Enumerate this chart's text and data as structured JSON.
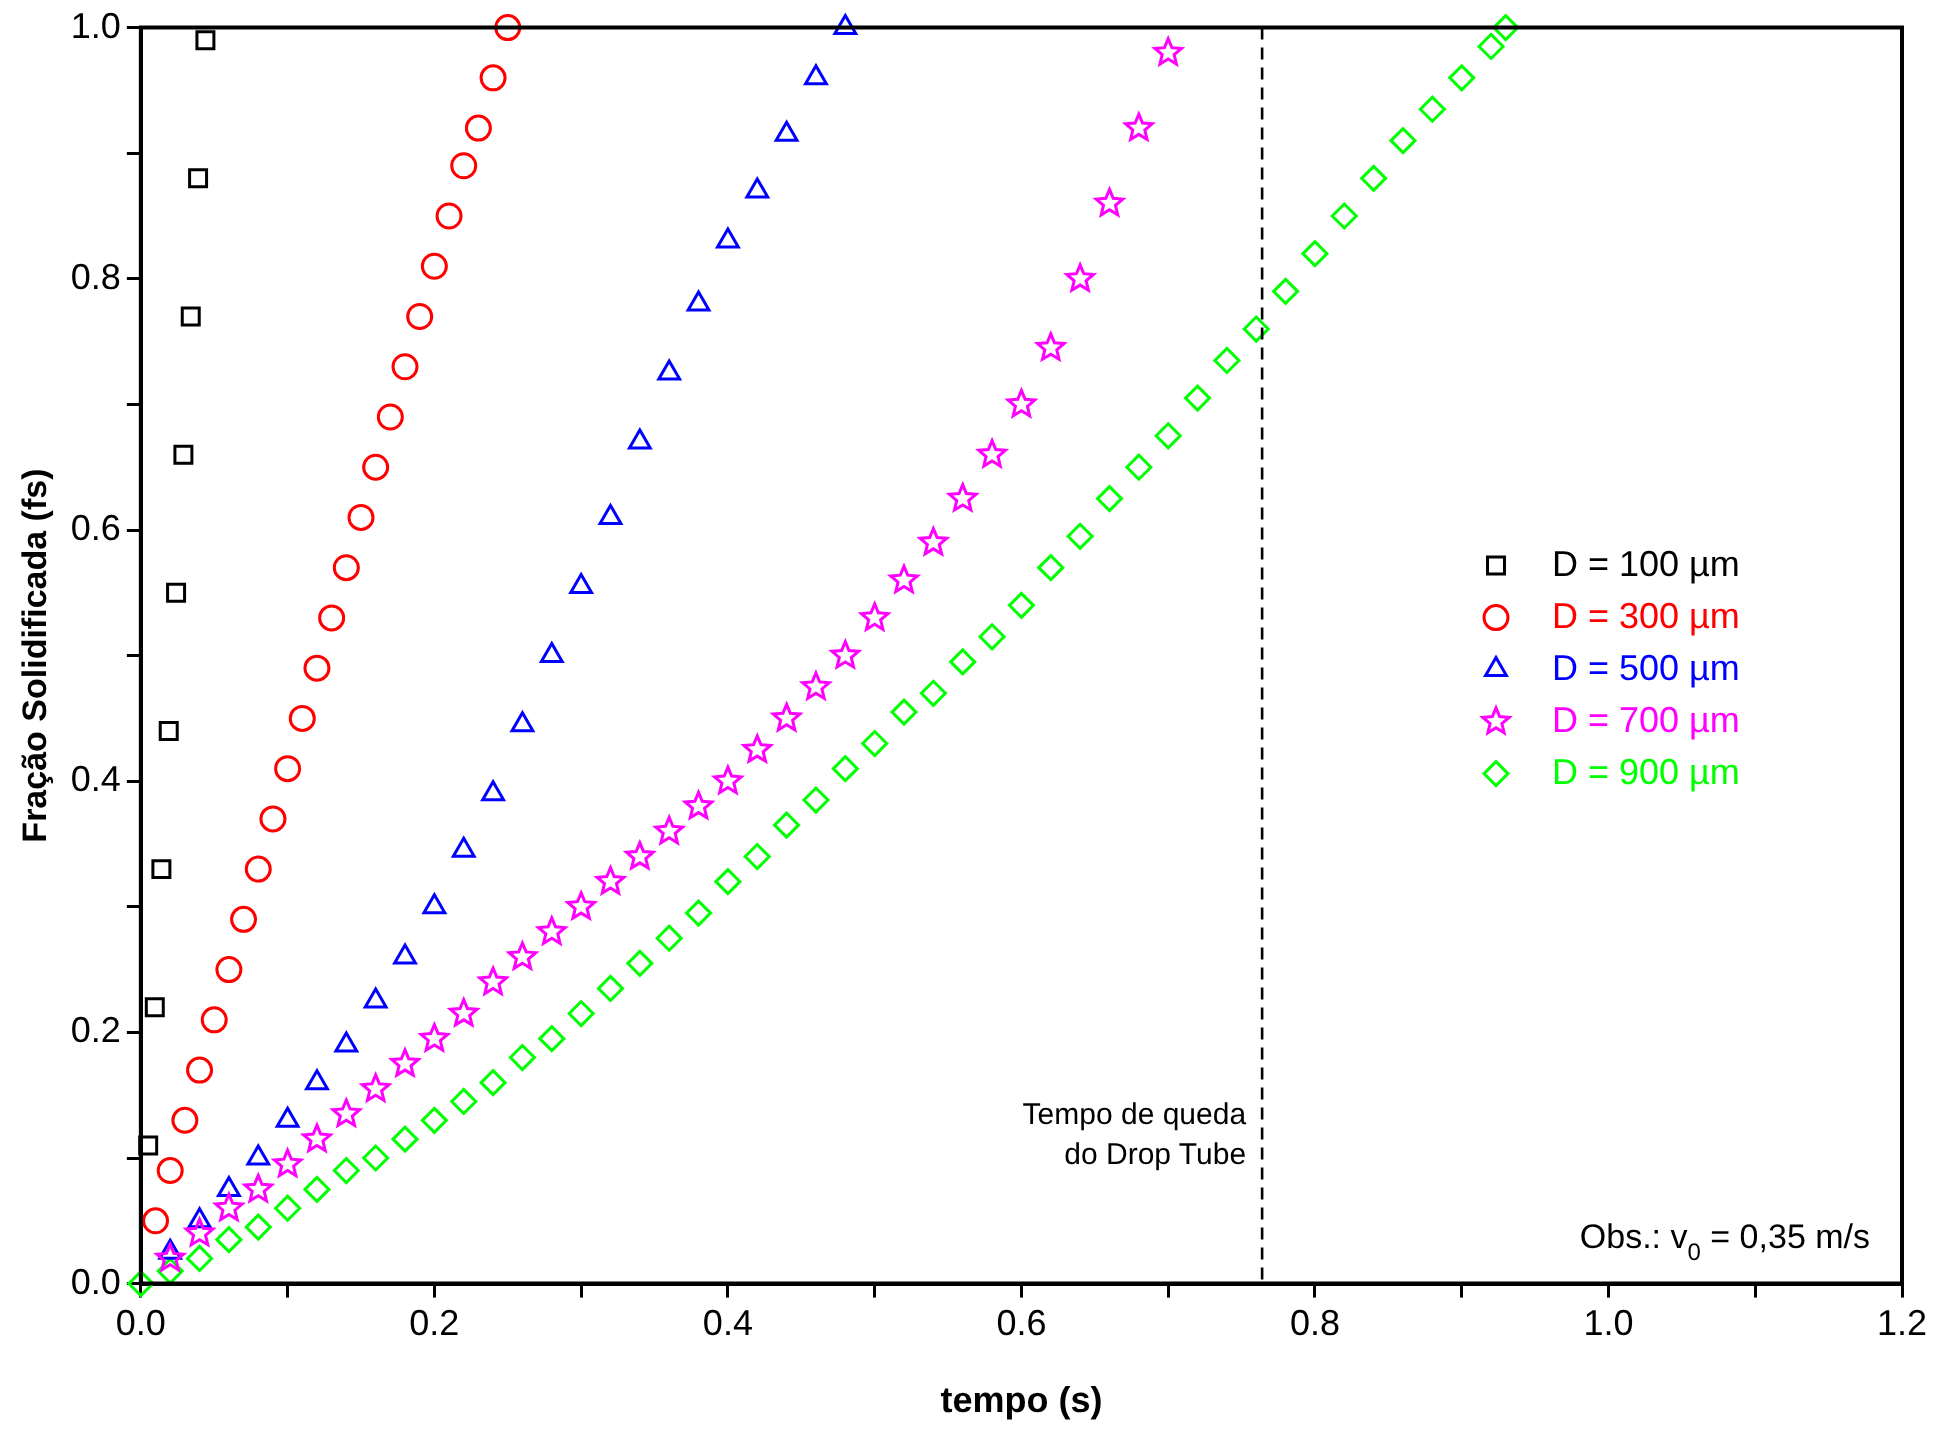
{
  "chart_data": {
    "type": "scatter",
    "xlabel": "tempo (s)",
    "ylabel": "Fração Solidificada (fs)",
    "xlim": [
      0,
      1.2
    ],
    "ylim": [
      0,
      1
    ],
    "xticks": [
      {
        "value": 0,
        "label": "0.0"
      },
      {
        "value": 0.1,
        "label": null
      },
      {
        "value": 0.2,
        "label": "0.2"
      },
      {
        "value": 0.3,
        "label": null
      },
      {
        "value": 0.4,
        "label": "0.4"
      },
      {
        "value": 0.5,
        "label": null
      },
      {
        "value": 0.6,
        "label": "0.6"
      },
      {
        "value": 0.7,
        "label": null
      },
      {
        "value": 0.8,
        "label": "0.8"
      },
      {
        "value": 0.9,
        "label": null
      },
      {
        "value": 1,
        "label": "1.0"
      },
      {
        "value": 1.1,
        "label": null
      },
      {
        "value": 1.2,
        "label": "1.2"
      }
    ],
    "yticks": [
      {
        "value": 0,
        "label": "0.0"
      },
      {
        "value": 0.1,
        "label": null
      },
      {
        "value": 0.2,
        "label": "0.2"
      },
      {
        "value": 0.3,
        "label": null
      },
      {
        "value": 0.4,
        "label": "0.4"
      },
      {
        "value": 0.5,
        "label": null
      },
      {
        "value": 0.6,
        "label": "0.6"
      },
      {
        "value": 0.7,
        "label": null
      },
      {
        "value": 0.8,
        "label": "0.8"
      },
      {
        "value": 0.9,
        "label": null
      },
      {
        "value": 1,
        "label": "1.0"
      }
    ],
    "grid": false,
    "legend": "right",
    "series": [
      {
        "name": "D = 100 µm",
        "color": "#000000",
        "marker": "square",
        "x": [
          0.005,
          0.0095,
          0.014,
          0.019,
          0.024,
          0.029,
          0.034,
          0.039,
          0.044
        ],
        "values": [
          0.11,
          0.22,
          0.33,
          0.44,
          0.55,
          0.66,
          0.77,
          0.88,
          0.99
        ]
      },
      {
        "name": "D = 300 µm",
        "color": "#ff0000",
        "marker": "circle",
        "x": [
          0.01,
          0.02,
          0.03,
          0.04,
          0.05,
          0.06,
          0.07,
          0.08,
          0.09,
          0.1,
          0.11,
          0.12,
          0.13,
          0.14,
          0.15,
          0.16,
          0.17,
          0.18,
          0.19,
          0.2,
          0.21,
          0.22,
          0.23,
          0.24,
          0.25
        ],
        "values": [
          0.05,
          0.09,
          0.13,
          0.17,
          0.21,
          0.25,
          0.29,
          0.33,
          0.37,
          0.41,
          0.45,
          0.49,
          0.53,
          0.57,
          0.61,
          0.65,
          0.69,
          0.73,
          0.77,
          0.81,
          0.85,
          0.89,
          0.92,
          0.96,
          1.0
        ]
      },
      {
        "name": "D = 500 µm",
        "color": "#0000ff",
        "marker": "triangle",
        "x": [
          0.02,
          0.04,
          0.06,
          0.08,
          0.1,
          0.12,
          0.14,
          0.16,
          0.18,
          0.2,
          0.22,
          0.24,
          0.26,
          0.28,
          0.3,
          0.32,
          0.34,
          0.36,
          0.38,
          0.4,
          0.42,
          0.44,
          0.46,
          0.48
        ],
        "values": [
          0.025,
          0.05,
          0.075,
          0.1,
          0.13,
          0.16,
          0.19,
          0.225,
          0.26,
          0.3,
          0.345,
          0.39,
          0.445,
          0.5,
          0.555,
          0.61,
          0.67,
          0.725,
          0.78,
          0.83,
          0.87,
          0.915,
          0.96,
          1.0
        ]
      },
      {
        "name": "D = 700 µm",
        "color": "#ff00ff",
        "marker": "star",
        "x": [
          0.02,
          0.04,
          0.06,
          0.08,
          0.1,
          0.12,
          0.14,
          0.16,
          0.18,
          0.2,
          0.22,
          0.24,
          0.26,
          0.28,
          0.3,
          0.32,
          0.34,
          0.36,
          0.38,
          0.4,
          0.42,
          0.44,
          0.46,
          0.48,
          0.5,
          0.52,
          0.54,
          0.56,
          0.58,
          0.6,
          0.62,
          0.64,
          0.66,
          0.68,
          0.7
        ],
        "values": [
          0.02,
          0.04,
          0.06,
          0.075,
          0.095,
          0.115,
          0.135,
          0.155,
          0.175,
          0.195,
          0.215,
          0.24,
          0.26,
          0.28,
          0.3,
          0.32,
          0.34,
          0.36,
          0.38,
          0.4,
          0.425,
          0.45,
          0.475,
          0.5,
          0.53,
          0.56,
          0.59,
          0.625,
          0.66,
          0.7,
          0.745,
          0.8,
          0.86,
          0.92,
          0.98
        ]
      },
      {
        "name": "D = 900 µm",
        "color": "#00ff00",
        "marker": "diamond",
        "x": [
          0,
          0.02,
          0.04,
          0.06,
          0.08,
          0.1,
          0.12,
          0.14,
          0.16,
          0.18,
          0.2,
          0.22,
          0.24,
          0.26,
          0.28,
          0.3,
          0.32,
          0.34,
          0.36,
          0.38,
          0.4,
          0.42,
          0.44,
          0.46,
          0.48,
          0.5,
          0.52,
          0.54,
          0.56,
          0.58,
          0.6,
          0.62,
          0.64,
          0.66,
          0.68,
          0.7,
          0.72,
          0.74,
          0.76,
          0.78,
          0.8,
          0.82,
          0.84,
          0.86,
          0.88,
          0.9,
          0.92,
          0.93
        ],
        "values": [
          0,
          0.01,
          0.02,
          0.035,
          0.045,
          0.06,
          0.075,
          0.09,
          0.1,
          0.115,
          0.13,
          0.145,
          0.16,
          0.18,
          0.195,
          0.215,
          0.235,
          0.255,
          0.275,
          0.295,
          0.32,
          0.34,
          0.365,
          0.385,
          0.41,
          0.43,
          0.455,
          0.47,
          0.495,
          0.515,
          0.54,
          0.57,
          0.595,
          0.625,
          0.65,
          0.675,
          0.705,
          0.735,
          0.76,
          0.79,
          0.82,
          0.85,
          0.88,
          0.91,
          0.935,
          0.96,
          0.985,
          1.0
        ]
      }
    ],
    "ref_lines": [
      {
        "axis": "x",
        "value": 0.764,
        "label": "Tempo de queda\ndo Drop Tube",
        "color": "#000000",
        "line_style": "dashed"
      }
    ],
    "annotations": [
      "Obs.: v$_{0}$ = 0,35 m/s"
    ]
  }
}
